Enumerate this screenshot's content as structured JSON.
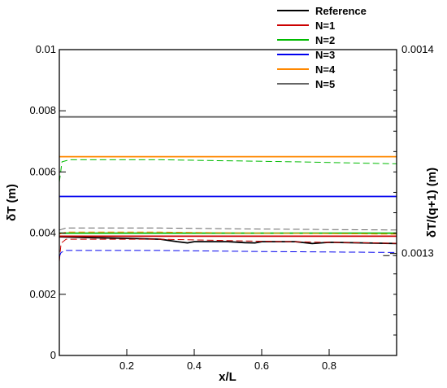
{
  "chart_data": {
    "type": "line",
    "xlabel": "x/L",
    "ylabel": "δT (m)",
    "y2label": "δT/(q+1) (m)",
    "xlim": [
      0,
      1
    ],
    "ylim": [
      0,
      0.01
    ],
    "y2lim": [
      0.00125,
      0.0014
    ],
    "grid": false,
    "legend_position": "top-right",
    "x_ticks": [
      0.2,
      0.4,
      0.6,
      0.8
    ],
    "x_tick_labels": [
      "0.2",
      "0.4",
      "0.6",
      "0.8"
    ],
    "y_ticks": [
      0,
      0.002,
      0.004,
      0.006,
      0.008,
      0.01
    ],
    "y_tick_labels": [
      "0",
      "0.002",
      "0.004",
      "0.006",
      "0.008",
      "0.01"
    ],
    "y2_ticks": [
      0.0013,
      0.0014
    ],
    "y2_tick_labels": [
      "0.0013",
      "0.0014"
    ],
    "series": [
      {
        "name": "Reference",
        "color": "#000000",
        "axis": "left",
        "style": "solid",
        "x": [
          0,
          0.1,
          0.2,
          0.3,
          0.35,
          0.38,
          0.4,
          0.5,
          0.55,
          0.58,
          0.6,
          0.7,
          0.75,
          0.8,
          0.9,
          1.0
        ],
        "y": [
          0.00388,
          0.00385,
          0.00383,
          0.0038,
          0.00372,
          0.00368,
          0.00372,
          0.00372,
          0.00369,
          0.00368,
          0.00372,
          0.00372,
          0.00366,
          0.0037,
          0.00368,
          0.00366
        ]
      },
      {
        "name": "N=1",
        "color": "#cc0000",
        "axis": "left",
        "style": "solid",
        "x": [
          0,
          1
        ],
        "y": [
          0.0039,
          0.0039
        ]
      },
      {
        "name": "N=2",
        "color": "#00bb00",
        "axis": "left",
        "style": "solid",
        "x": [
          0,
          1
        ],
        "y": [
          0.004,
          0.004
        ]
      },
      {
        "name": "N=3",
        "color": "#0000ee",
        "axis": "left",
        "style": "solid",
        "x": [
          0,
          1
        ],
        "y": [
          0.0052,
          0.0052
        ]
      },
      {
        "name": "N=4",
        "color": "#ff8800",
        "axis": "left",
        "style": "solid",
        "x": [
          0,
          1
        ],
        "y": [
          0.0065,
          0.0065
        ]
      },
      {
        "name": "N=5",
        "color": "#666666",
        "axis": "left",
        "style": "solid",
        "x": [
          0,
          1
        ],
        "y": [
          0.0078,
          0.0078
        ]
      },
      {
        "color": "#000000",
        "axis": "right",
        "style": "dashed",
        "x": [
          0.96,
          1.0
        ],
        "y": [
          0.001299,
          0.001299
        ]
      },
      {
        "color": "#cc0000",
        "axis": "right",
        "style": "dashed",
        "x": [
          0,
          0.005,
          0.02,
          0.3,
          0.6,
          1.0
        ],
        "y": [
          0.001296,
          0.001305,
          0.001307,
          0.001307,
          0.001306,
          0.001305
        ]
      },
      {
        "color": "#00bb00",
        "axis": "right",
        "style": "dashed",
        "x": [
          0,
          0.008,
          0.03,
          0.3,
          0.7,
          1.0
        ],
        "y": [
          0.001335,
          0.001345,
          0.001346,
          0.001346,
          0.001345,
          0.001344
        ]
      },
      {
        "color": "#0000ee",
        "axis": "right",
        "style": "dashed",
        "x": [
          0,
          0.005,
          0.02,
          0.3,
          0.6,
          1.0
        ],
        "y": [
          0.0012985,
          0.0013005,
          0.0013015,
          0.0013015,
          0.001301,
          0.0013005
        ]
      },
      {
        "color": "#ff8800",
        "axis": "right",
        "style": "dashed",
        "x": [
          0,
          0.02,
          0.3,
          0.6,
          1.0
        ],
        "y": [
          0.0013095,
          0.0013105,
          0.0013105,
          0.00131,
          0.0013095
        ]
      },
      {
        "color": "#666666",
        "axis": "right",
        "style": "dashed",
        "x": [
          0,
          0.02,
          0.3,
          0.6,
          1.0
        ],
        "y": [
          0.0013115,
          0.0013125,
          0.0013125,
          0.001312,
          0.0013115
        ]
      }
    ]
  }
}
